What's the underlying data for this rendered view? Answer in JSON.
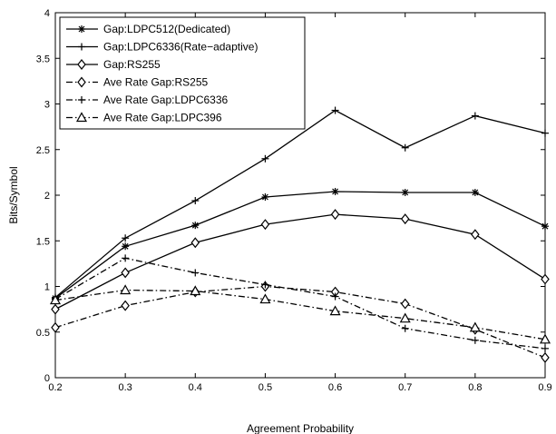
{
  "chart_data": {
    "type": "line",
    "xlabel": "Agreement Probability",
    "ylabel": "Bits/Symbol",
    "xlim": [
      0.2,
      0.9
    ],
    "ylim": [
      0,
      4
    ],
    "xticks": [
      "0.2",
      "0.3",
      "0.4",
      "0.5",
      "0.6",
      "0.7",
      "0.8",
      "0.9"
    ],
    "yticks": [
      "0",
      "0.5",
      "1",
      "1.5",
      "2",
      "2.5",
      "3",
      "3.5",
      "4"
    ],
    "grid": false,
    "legend_position": "top-left",
    "x": [
      0.2,
      0.3,
      0.4,
      0.5,
      0.6,
      0.7,
      0.8,
      0.9
    ],
    "series": [
      {
        "name": "Gap:LDPC512(Dedicated)",
        "values": [
          0.87,
          1.44,
          1.67,
          1.98,
          2.04,
          2.03,
          2.03,
          1.66
        ],
        "line_style": "solid",
        "marker": "asterisk"
      },
      {
        "name": "Gap:LDPC6336(Rate−adaptive)",
        "values": [
          0.88,
          1.53,
          1.94,
          2.4,
          2.93,
          2.52,
          2.87,
          2.68
        ],
        "line_style": "solid",
        "marker": "plus"
      },
      {
        "name": "Gap:RS255",
        "values": [
          0.75,
          1.15,
          1.48,
          1.68,
          1.79,
          1.74,
          1.57,
          1.08
        ],
        "line_style": "solid",
        "marker": "diamond"
      },
      {
        "name": "Ave Rate Gap:RS255",
        "values": [
          0.55,
          0.79,
          0.94,
          1.0,
          0.94,
          0.81,
          0.53,
          0.22
        ],
        "line_style": "dashdot",
        "marker": "diamond"
      },
      {
        "name": "Ave Rate Gap:LDPC6336",
        "values": [
          0.86,
          1.31,
          1.15,
          1.02,
          0.89,
          0.54,
          0.41,
          0.32
        ],
        "line_style": "dashdot",
        "marker": "plus"
      },
      {
        "name": "Ave Rate Gap:LDPC396",
        "values": [
          0.85,
          0.96,
          0.95,
          0.86,
          0.73,
          0.65,
          0.55,
          0.42
        ],
        "line_style": "dashdot",
        "marker": "triangle"
      }
    ]
  }
}
